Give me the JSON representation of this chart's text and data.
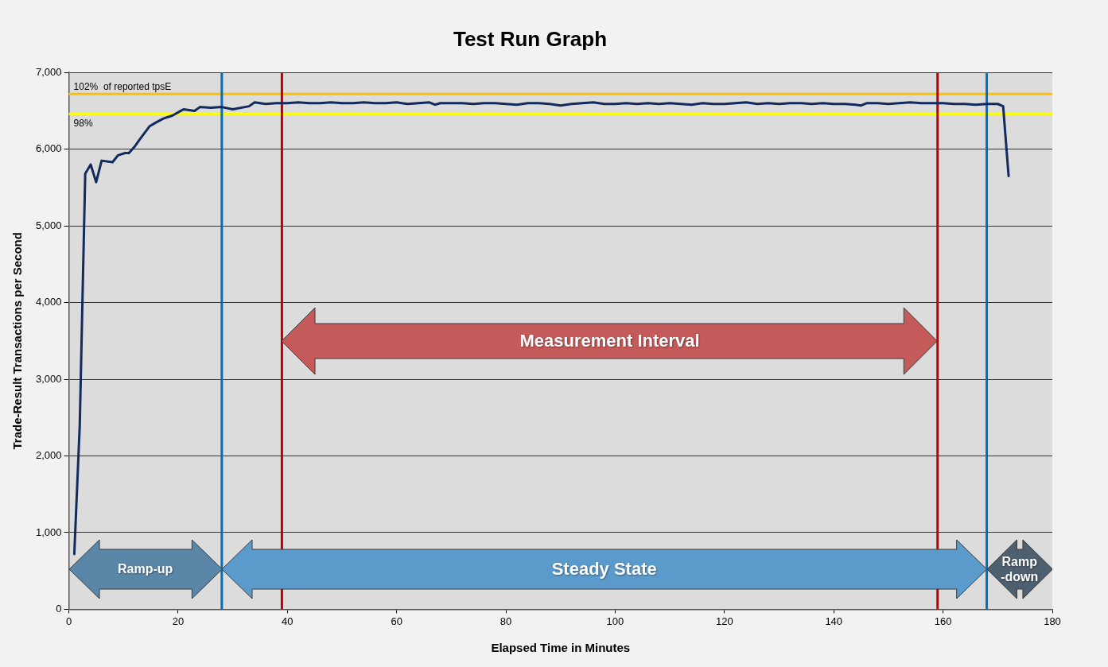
{
  "chart_data": {
    "type": "line",
    "title": "Test Run Graph",
    "xlabel": "Elapsed Time in Minutes",
    "ylabel": "Trade-Result Transactions per Second",
    "series": [
      {
        "color": "#132a5e",
        "x": [
          1,
          2,
          3,
          4,
          5,
          6,
          8,
          9,
          10.3,
          11,
          12,
          13,
          14.8,
          16,
          17.3,
          19,
          20.5,
          21,
          23,
          24,
          26,
          28,
          30,
          33,
          34,
          36,
          38,
          40,
          42,
          44,
          46,
          48,
          50,
          52,
          54,
          56,
          58,
          60,
          62,
          64,
          66,
          67,
          68,
          70,
          72,
          74,
          76,
          78,
          80,
          82,
          84,
          86,
          88,
          90,
          92,
          94,
          96,
          98,
          100,
          102,
          104,
          106,
          108,
          110,
          112,
          114,
          116,
          118,
          120,
          122,
          124,
          126,
          128,
          130,
          132,
          134,
          136,
          138,
          140,
          142,
          144,
          145,
          146,
          148,
          150,
          152,
          154,
          156,
          158,
          160,
          162,
          164,
          166,
          168,
          170,
          171,
          172
        ],
        "values": [
          720,
          2400,
          5680,
          5800,
          5570,
          5850,
          5830,
          5920,
          5950,
          5950,
          6030,
          6130,
          6300,
          6350,
          6400,
          6440,
          6500,
          6520,
          6500,
          6550,
          6540,
          6550,
          6520,
          6560,
          6610,
          6590,
          6600,
          6600,
          6610,
          6600,
          6600,
          6610,
          6600,
          6600,
          6610,
          6600,
          6600,
          6610,
          6590,
          6600,
          6610,
          6580,
          6600,
          6600,
          6600,
          6590,
          6600,
          6600,
          6590,
          6580,
          6600,
          6600,
          6590,
          6570,
          6590,
          6600,
          6610,
          6590,
          6590,
          6600,
          6590,
          6600,
          6590,
          6600,
          6590,
          6580,
          6600,
          6590,
          6590,
          6600,
          6610,
          6590,
          6600,
          6590,
          6600,
          6600,
          6590,
          6600,
          6590,
          6590,
          6580,
          6570,
          6600,
          6600,
          6590,
          6600,
          6610,
          6600,
          6600,
          6600,
          6590,
          6590,
          6580,
          6590,
          6590,
          6560,
          5650
        ]
      }
    ],
    "xlim": [
      0,
      180
    ],
    "xticks": [
      0,
      20,
      40,
      60,
      80,
      100,
      120,
      140,
      160,
      180
    ],
    "ylim": [
      0,
      7000
    ],
    "yticks": [
      0,
      {
        "value": 1000,
        "label": "1,000"
      },
      {
        "value": 2000,
        "label": "2,000"
      },
      {
        "value": 3000,
        "label": "3,000"
      },
      {
        "value": 4000,
        "label": "4,000"
      },
      {
        "value": 5000,
        "label": "5,000"
      },
      {
        "value": 6000,
        "label": "6,000"
      },
      {
        "value": 7000,
        "label": "7,000"
      }
    ],
    "grid": "y",
    "legend": false,
    "marker": "none",
    "line_style": "solid",
    "ref_lines": [
      {
        "axis": "y",
        "value": 6720,
        "label": "102%  of reported tpsE",
        "color": "#ffc000"
      },
      {
        "axis": "y",
        "value": 6460,
        "color": "#ffff00"
      },
      {
        "axis": "x",
        "value": 28,
        "color": "#0070c0"
      },
      {
        "axis": "x",
        "value": 168,
        "color": "#0070c0"
      },
      {
        "axis": "x",
        "value": 39,
        "color": "#c00000"
      },
      {
        "axis": "x",
        "value": 159,
        "color": "#c00000"
      }
    ],
    "annotations": [
      "Measurement Interval",
      "Ramp-up",
      "Steady State",
      "Ramp\n-down",
      "98%"
    ]
  }
}
